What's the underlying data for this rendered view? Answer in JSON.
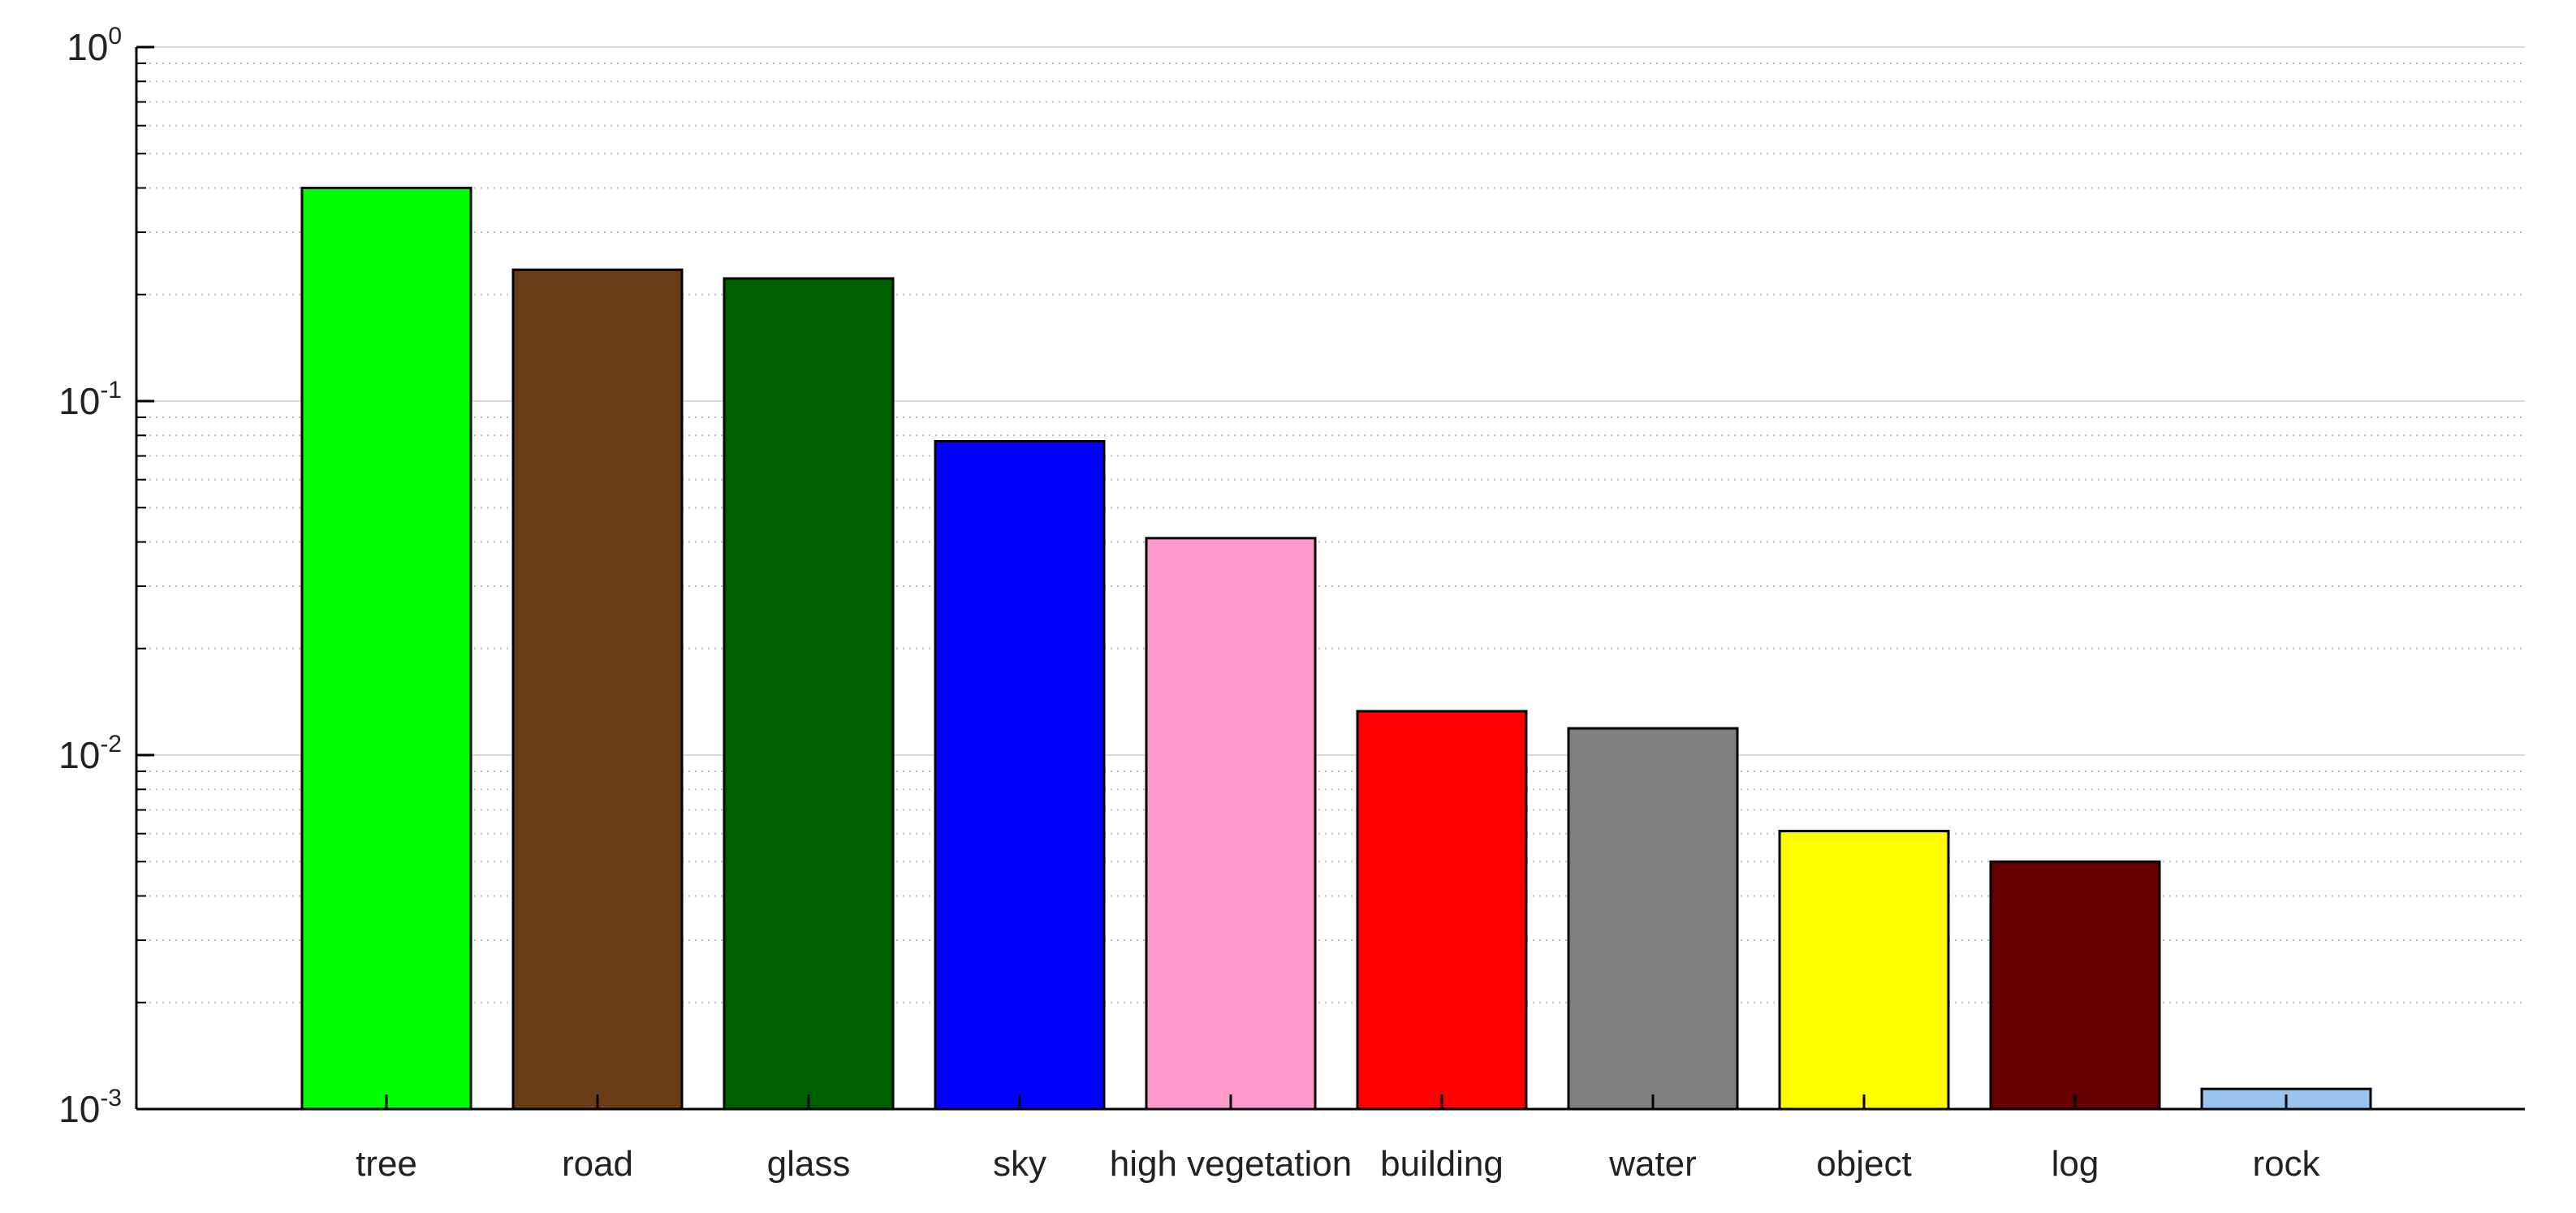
{
  "chart_data": {
    "type": "bar",
    "title": "",
    "xlabel": "",
    "ylabel": "",
    "yscale": "log",
    "ylim": [
      0.001,
      1
    ],
    "grid": true,
    "legend": "none",
    "y_ticks": [
      {
        "base": "10",
        "exp": "-3",
        "value": 0.001
      },
      {
        "base": "10",
        "exp": "-2",
        "value": 0.01
      },
      {
        "base": "10",
        "exp": "-1",
        "value": 0.1
      },
      {
        "base": "10",
        "exp": "0",
        "value": 1
      }
    ],
    "categories": [
      "tree",
      "road",
      "glass",
      "sky",
      "high vegetation",
      "building",
      "water",
      "object",
      "log",
      "rock"
    ],
    "values": [
      0.4,
      0.235,
      0.222,
      0.077,
      0.041,
      0.0133,
      0.0119,
      0.0061,
      0.005,
      0.00114
    ],
    "colors": [
      "#00ff00",
      "#6b3d16",
      "#006000",
      "#0000ff",
      "#ff9acb",
      "#ff0000",
      "#808080",
      "#ffff00",
      "#640000",
      "#99c4f0"
    ]
  }
}
